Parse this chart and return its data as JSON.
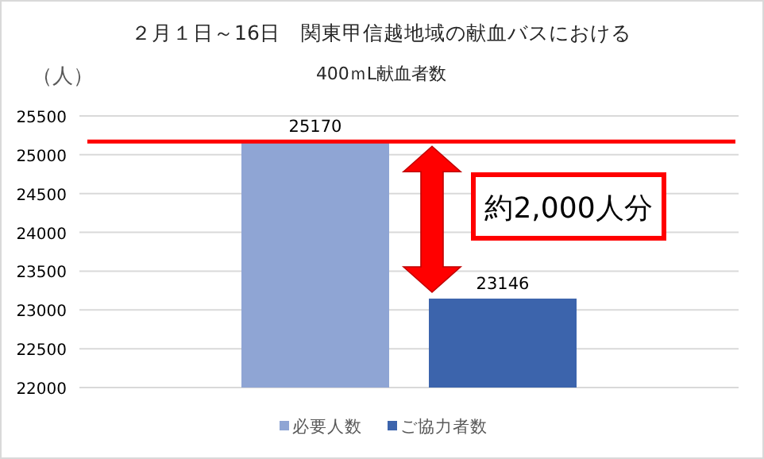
{
  "chart_data": {
    "type": "bar",
    "title": "２月１日～16日　関東甲信越地域の献血バスにおける",
    "subtitle": "400ｍL献血者数",
    "ylabel": "（人）",
    "categories": [
      null
    ],
    "series": [
      {
        "name": "必要人数",
        "color": "#8fa5d4",
        "values": [
          25170
        ]
      },
      {
        "name": "ご協力者数",
        "color": "#3c64ac",
        "values": [
          23146
        ]
      }
    ],
    "ylim": [
      22000,
      25500
    ],
    "yticks": [
      22000,
      22500,
      23000,
      23500,
      24000,
      24500,
      25000,
      25500
    ],
    "grid": "y",
    "data_labels": true,
    "legend": "bottom",
    "ref_lines": [
      {
        "axis": "y",
        "value": 25170,
        "color": "#ff0000"
      }
    ],
    "annotations": [
      "約2,000人分"
    ]
  }
}
